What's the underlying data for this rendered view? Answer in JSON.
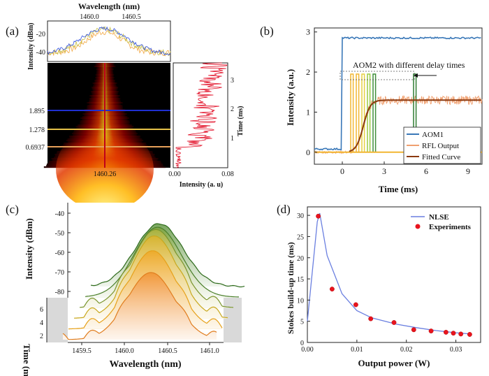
{
  "chart_data": [
    {
      "panel": "(a)",
      "type": "heatmap",
      "top_spectrum": {
        "xlabel": "Wavelength (nm)",
        "ylabel": "Intensity (dBm)",
        "x_ticks": [
          "1460.0",
          "1460.5"
        ],
        "y_ticks": [
          "-20",
          "-40"
        ]
      },
      "heatmap": {
        "x_tick": "1460.26",
        "y_ticks": [
          "1.895",
          "1.278",
          "0.6937"
        ],
        "marker_wavelength": 1460.26,
        "marker_times": [
          1.895,
          1.278,
          0.6937
        ]
      },
      "side_trace": {
        "xlabel": "Intensity (a. u)",
        "ylabel": "Time (ms)",
        "x_ticks": [
          "0.00",
          "0.08"
        ],
        "y_ticks": [
          "1",
          "2",
          "3"
        ]
      }
    },
    {
      "panel": "(b)",
      "type": "line",
      "xlabel": "Time (ms)",
      "ylabel": "Intensity (a.u.)",
      "xlim": [
        -2,
        10
      ],
      "ylim": [
        -0.3,
        3.1
      ],
      "x_ticks": [
        0,
        3,
        6,
        9
      ],
      "y_ticks": [
        0,
        1,
        2,
        3
      ],
      "annotation": "AOM2 with different delay times",
      "legend": [
        "AOM1",
        "RFL Output",
        "Fitted Curve"
      ],
      "legend_position": "bottom-right",
      "aom1": {
        "low": 0.08,
        "high": 2.85,
        "rise_time": 0
      },
      "aom2_pulses": {
        "starts": [
          0.6,
          1.0,
          1.4,
          1.8,
          2.2,
          5.1
        ],
        "width": 0.18,
        "height": 1.95
      },
      "rfl_plateau": 1.3,
      "fitted_midpoint": 1.5
    },
    {
      "panel": "(c)",
      "type": "area",
      "xlabel": "Wavelength (nm)",
      "ylabel": "Intensity (dBm)",
      "zlabel": "Time (ms)",
      "x_ticks": [
        "1459.5",
        "1460.0",
        "1460.5",
        "1461.0"
      ],
      "y_ticks": [
        "-40",
        "-50",
        "-60",
        "-70",
        "-80"
      ],
      "z_ticks": [
        "2",
        "4",
        "6"
      ]
    },
    {
      "panel": "(d)",
      "type": "line",
      "xlabel": "Output power (W)",
      "ylabel": "Stokes build-up time (ms)",
      "xlim": [
        0,
        0.035
      ],
      "ylim": [
        0,
        32
      ],
      "x_ticks": [
        "0.00",
        "0.01",
        "0.02",
        "0.03"
      ],
      "y_ticks": [
        "0",
        "5",
        "10",
        "15",
        "20",
        "25",
        "30"
      ],
      "legend_position": "top-right",
      "series": [
        {
          "name": "NLSE",
          "kind": "line",
          "x": [
            0.0,
            0.002,
            0.0025,
            0.004,
            0.007,
            0.01,
            0.013,
            0.018,
            0.022,
            0.026,
            0.03,
            0.033
          ],
          "y": [
            5.0,
            28.5,
            30.5,
            20.5,
            11.5,
            7.5,
            5.8,
            4.3,
            3.5,
            2.8,
            2.3,
            2.0
          ]
        },
        {
          "name": "Experiments",
          "kind": "scatter",
          "x": [
            0.0022,
            0.005,
            0.0098,
            0.0128,
            0.0175,
            0.0215,
            0.025,
            0.028,
            0.0295,
            0.031,
            0.0328
          ],
          "y": [
            29.8,
            12.6,
            8.9,
            5.6,
            4.7,
            3.0,
            2.7,
            2.4,
            2.2,
            2.0,
            1.9
          ]
        }
      ]
    }
  ]
}
